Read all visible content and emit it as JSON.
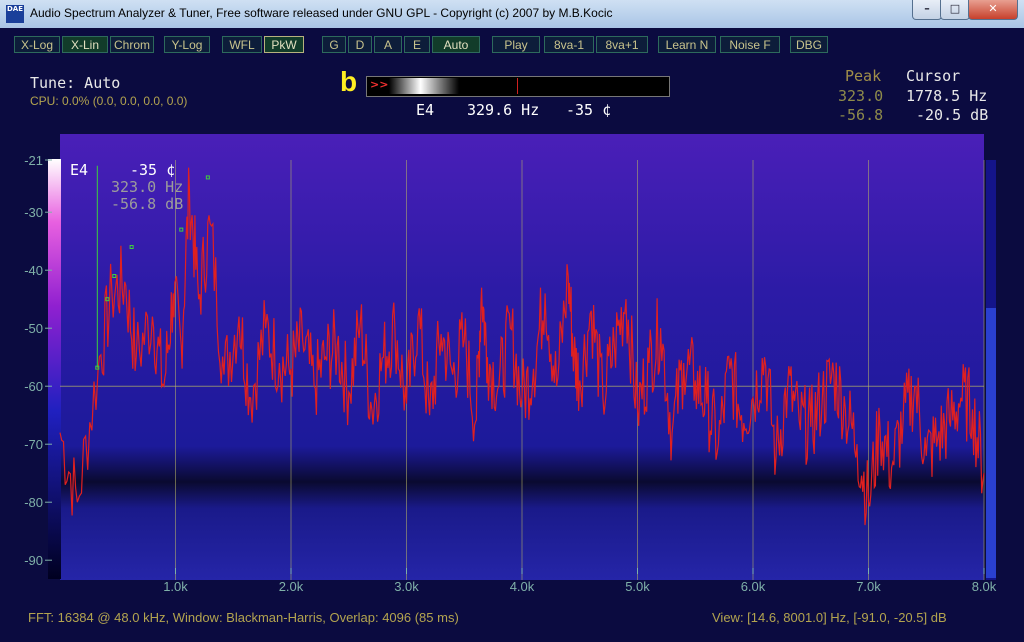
{
  "window": {
    "app_icon": "DAE",
    "title": "Audio Spectrum Analyzer & Tuner, Free software released under GNU GPL - Copyright (c) 2007 by M.B.Kocic",
    "min": "–",
    "max": "□",
    "close": "✕"
  },
  "toolbar": {
    "buttons": [
      {
        "label": "X-Log",
        "on": false
      },
      {
        "label": "X-Lin",
        "on": true
      },
      {
        "label": "Chrom",
        "on": false
      },
      {
        "label": "Y-Log",
        "on": false
      },
      {
        "label": "WFL",
        "on": false
      },
      {
        "label": "PkW",
        "on": true
      },
      {
        "label": "G",
        "on": false
      },
      {
        "label": "D",
        "on": false
      },
      {
        "label": "A",
        "on": false
      },
      {
        "label": "E",
        "on": false
      },
      {
        "label": "Auto",
        "on": true
      },
      {
        "label": "Play",
        "on": false
      },
      {
        "label": "8va-1",
        "on": false
      },
      {
        "label": "8va+1",
        "on": false
      },
      {
        "label": "Learn N",
        "on": false
      },
      {
        "label": "Noise F",
        "on": false
      },
      {
        "label": "DBG",
        "on": false
      }
    ]
  },
  "info": {
    "tune": "Tune: Auto",
    "cpu": "CPU:  0.0% (0.0, 0.0, 0.0, 0.0)",
    "marker": "b",
    "tuner_arrows": ">>",
    "note": "E4",
    "freq": "329.6 Hz",
    "cents": "-35 ¢"
  },
  "readout": {
    "peak_label": "Peak",
    "cursor_label": "Cursor",
    "peak_freq": "323.0",
    "cursor_freq": "1778.5 Hz",
    "peak_db": "-56.8",
    "cursor_db": "-20.5 dB"
  },
  "overlay": {
    "note": "E4",
    "cents": "-35 ¢",
    "freq": "323.0 Hz",
    "db": "-56.8 dB"
  },
  "status": {
    "left": "FFT: 16384 @ 48.0 kHz, Window: Blackman-Harris, Overlap: 4096 (85 ms)",
    "right": "View: [14.6, 8001.0] Hz, [-91.0, -20.5] dB"
  },
  "colors": {
    "spectrum": "#e02020",
    "grid": "#b7b466",
    "markers": "#3ecf3e"
  },
  "chart_data": {
    "type": "line",
    "xlabel": "",
    "ylabel": "",
    "xlim": [
      0,
      8000
    ],
    "ylim": [
      -91,
      -21
    ],
    "x_ticks": [
      1000,
      2000,
      3000,
      4000,
      5000,
      6000,
      7000,
      8000
    ],
    "x_tick_labels": [
      "1.0k",
      "2.0k",
      "3.0k",
      "4.0k",
      "5.0k",
      "6.0k",
      "7.0k",
      "8.0k"
    ],
    "y_ticks": [
      -21,
      -30,
      -40,
      -50,
      -60,
      -70,
      -80,
      -90
    ],
    "y_tick_labels": [
      "-21",
      "-30",
      "-40",
      "-50",
      "-60",
      "-70",
      "-80",
      "-90"
    ],
    "cursor_db": -60,
    "grid": true,
    "series": [
      {
        "x": [
          0,
          150,
          330,
          450,
          560,
          660,
          800,
          900,
          980,
          1050,
          1120,
          1200,
          1300,
          1420,
          1550,
          1650,
          1780,
          1900,
          2000,
          2100,
          2200,
          2300,
          2400,
          2500,
          2600,
          2700,
          2800,
          2900,
          3000,
          3100,
          3200,
          3300,
          3400,
          3500,
          3600,
          3650,
          3700,
          3800,
          3900,
          4000,
          4100,
          4200,
          4300,
          4400,
          4450,
          4500,
          4600,
          4700,
          4800,
          4900,
          5000,
          5100,
          5200,
          5300,
          5400,
          5500,
          5600,
          5700,
          5800,
          5900,
          6000,
          6100,
          6200,
          6300,
          6400,
          6500,
          6600,
          6700,
          6800,
          6900,
          7000,
          7100,
          7200,
          7300,
          7400,
          7500,
          7600,
          7700,
          7800,
          7900,
          8000
        ],
        "y": [
          -68,
          -80,
          -57,
          -44,
          -42,
          -55,
          -48,
          -60,
          -44,
          -53,
          -26,
          -45,
          -32,
          -58,
          -48,
          -62,
          -50,
          -56,
          -57,
          -52,
          -60,
          -55,
          -53,
          -61,
          -49,
          -64,
          -55,
          -50,
          -63,
          -48,
          -65,
          -51,
          -58,
          -52,
          -66,
          -43,
          -55,
          -60,
          -50,
          -62,
          -57,
          -44,
          -60,
          -41,
          -55,
          -59,
          -47,
          -62,
          -53,
          -45,
          -64,
          -56,
          -50,
          -68,
          -56,
          -59,
          -63,
          -70,
          -57,
          -65,
          -62,
          -55,
          -72,
          -60,
          -66,
          -67,
          -62,
          -58,
          -64,
          -70,
          -80,
          -67,
          -74,
          -66,
          -60,
          -72,
          -69,
          -66,
          -62,
          -64,
          -75
        ]
      }
    ],
    "peak_markers": [
      {
        "x": 323,
        "y": -56.8
      },
      {
        "x": 410,
        "y": -45
      },
      {
        "x": 470,
        "y": -41
      },
      {
        "x": 620,
        "y": -36
      },
      {
        "x": 1050,
        "y": -33
      },
      {
        "x": 1280,
        "y": -24
      }
    ]
  }
}
